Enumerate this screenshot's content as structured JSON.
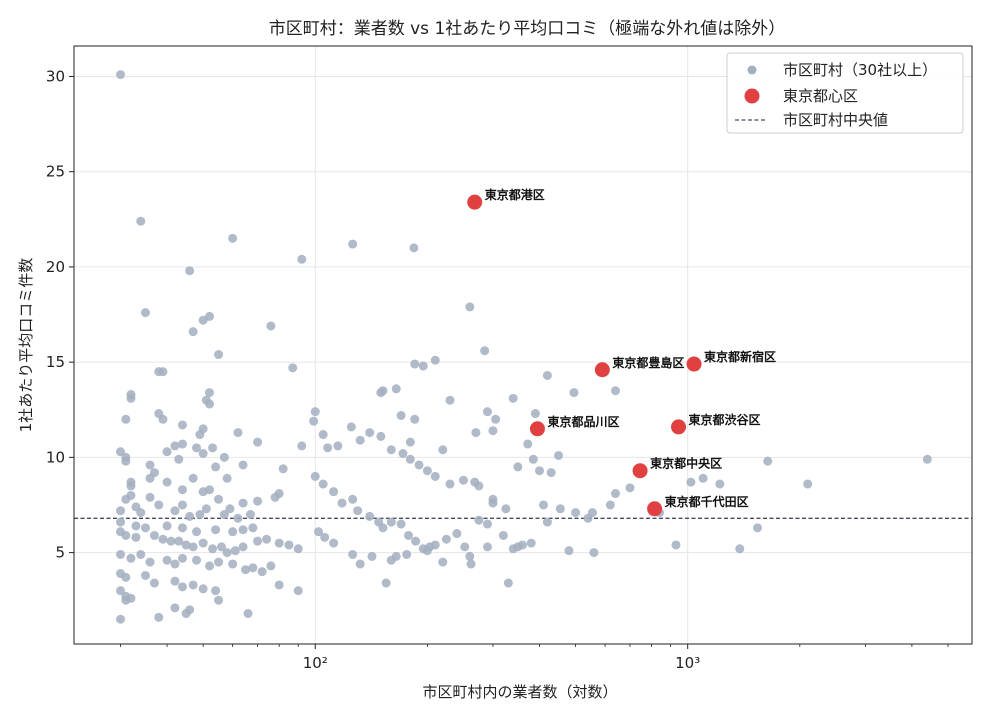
{
  "chart_data": {
    "type": "scatter",
    "title": "市区町村：業者数 vs 1社あたり平均口コミ（極端な外れ値は除外）",
    "xlabel": "市区町村内の業者数（対数）",
    "ylabel": "1社あたり平均口コミ件数",
    "x_scale": "log",
    "xlim": [
      22.5,
      5800
    ],
    "ylim": [
      0.2,
      31.6
    ],
    "x_ticks": [
      100,
      1000
    ],
    "x_tick_labels": [
      "10²",
      "10³"
    ],
    "y_ticks": [
      5,
      10,
      15,
      20,
      25,
      30
    ],
    "grid": true,
    "legend_position": "top-right",
    "legend": [
      "市区町村（30社以上）",
      "東京都心区",
      "市区町村中央値"
    ],
    "colors": {
      "municipal": "#a3aebf",
      "highlight": "#e04040",
      "median": "#444b5c"
    },
    "median_y": 6.8,
    "series": [
      {
        "name": "市区町村（30社以上）",
        "points": [
          [
            30,
            30.1
          ],
          [
            34,
            22.4
          ],
          [
            60,
            21.5
          ],
          [
            46,
            19.8
          ],
          [
            92,
            20.4
          ],
          [
            126,
            21.2
          ],
          [
            184,
            21.0
          ],
          [
            35,
            17.6
          ],
          [
            52,
            17.4
          ],
          [
            50,
            17.2
          ],
          [
            76,
            16.9
          ],
          [
            47,
            16.6
          ],
          [
            55,
            15.4
          ],
          [
            87,
            14.7
          ],
          [
            38,
            14.5
          ],
          [
            39,
            14.5
          ],
          [
            32,
            13.3
          ],
          [
            32,
            13.1
          ],
          [
            52,
            13.4
          ],
          [
            51,
            13.0
          ],
          [
            52,
            12.8
          ],
          [
            38,
            12.3
          ],
          [
            39,
            12.0
          ],
          [
            31,
            12.0
          ],
          [
            44,
            11.7
          ],
          [
            50,
            11.5
          ],
          [
            62,
            11.3
          ],
          [
            49,
            11.2
          ],
          [
            70,
            10.8
          ],
          [
            42,
            10.6
          ],
          [
            44,
            10.7
          ],
          [
            48,
            10.5
          ],
          [
            53,
            10.5
          ],
          [
            92,
            10.6
          ],
          [
            40,
            10.3
          ],
          [
            50,
            10.2
          ],
          [
            57,
            10.0
          ],
          [
            30,
            10.3
          ],
          [
            31,
            10.0
          ],
          [
            31,
            9.8
          ],
          [
            43,
            9.9
          ],
          [
            36,
            9.6
          ],
          [
            37,
            9.2
          ],
          [
            54,
            9.5
          ],
          [
            64,
            9.6
          ],
          [
            82,
            9.4
          ],
          [
            36,
            8.9
          ],
          [
            58,
            8.9
          ],
          [
            47,
            8.9
          ],
          [
            40,
            8.7
          ],
          [
            32,
            8.7
          ],
          [
            32,
            8.5
          ],
          [
            52,
            8.3
          ],
          [
            80,
            8.1
          ],
          [
            44,
            8.3
          ],
          [
            50,
            8.2
          ],
          [
            32,
            8.0
          ],
          [
            31,
            7.8
          ],
          [
            36,
            7.9
          ],
          [
            55,
            7.8
          ],
          [
            64,
            7.6
          ],
          [
            44,
            7.5
          ],
          [
            38,
            7.5
          ],
          [
            33,
            7.4
          ],
          [
            78,
            7.9
          ],
          [
            70,
            7.7
          ],
          [
            59,
            7.3
          ],
          [
            34,
            7.1
          ],
          [
            42,
            7.2
          ],
          [
            51,
            7.3
          ],
          [
            57,
            7.0
          ],
          [
            30,
            7.2
          ],
          [
            46,
            6.9
          ],
          [
            49,
            7.0
          ],
          [
            67,
            7.0
          ],
          [
            62,
            6.8
          ],
          [
            30,
            6.6
          ],
          [
            33,
            6.4
          ],
          [
            40,
            6.4
          ],
          [
            35,
            6.3
          ],
          [
            44,
            6.3
          ],
          [
            48,
            6.1
          ],
          [
            54,
            6.2
          ],
          [
            60,
            6.1
          ],
          [
            64,
            6.2
          ],
          [
            68,
            6.3
          ],
          [
            30,
            6.1
          ],
          [
            31,
            5.9
          ],
          [
            33,
            5.8
          ],
          [
            37,
            5.9
          ],
          [
            39,
            5.7
          ],
          [
            41,
            5.6
          ],
          [
            43,
            5.6
          ],
          [
            45,
            5.4
          ],
          [
            47,
            5.3
          ],
          [
            50,
            5.5
          ],
          [
            53,
            5.2
          ],
          [
            56,
            5.3
          ],
          [
            58,
            5.0
          ],
          [
            61,
            5.1
          ],
          [
            64,
            5.3
          ],
          [
            70,
            5.6
          ],
          [
            74,
            5.7
          ],
          [
            80,
            5.5
          ],
          [
            85,
            5.4
          ],
          [
            90,
            5.2
          ],
          [
            30,
            4.9
          ],
          [
            32,
            4.7
          ],
          [
            34,
            4.9
          ],
          [
            36,
            4.5
          ],
          [
            40,
            4.6
          ],
          [
            42,
            4.4
          ],
          [
            44,
            4.7
          ],
          [
            48,
            4.6
          ],
          [
            52,
            4.3
          ],
          [
            55,
            4.5
          ],
          [
            60,
            4.4
          ],
          [
            65,
            4.1
          ],
          [
            68,
            4.2
          ],
          [
            72,
            4.0
          ],
          [
            76,
            4.3
          ],
          [
            30,
            3.9
          ],
          [
            31,
            3.7
          ],
          [
            35,
            3.8
          ],
          [
            37,
            3.4
          ],
          [
            42,
            3.5
          ],
          [
            44,
            3.2
          ],
          [
            47,
            3.3
          ],
          [
            50,
            3.1
          ],
          [
            54,
            3.0
          ],
          [
            30,
            3.0
          ],
          [
            31,
            2.7
          ],
          [
            32,
            2.6
          ],
          [
            31,
            2.5
          ],
          [
            42,
            2.1
          ],
          [
            46,
            2.0
          ],
          [
            45,
            1.8
          ],
          [
            38,
            1.6
          ],
          [
            30,
            1.5
          ],
          [
            55,
            2.5
          ],
          [
            66,
            1.8
          ],
          [
            80,
            3.3
          ],
          [
            90,
            3.0
          ],
          [
            100,
            12.4
          ],
          [
            99,
            11.9
          ],
          [
            105,
            11.2
          ],
          [
            108,
            10.5
          ],
          [
            115,
            10.6
          ],
          [
            125,
            11.6
          ],
          [
            132,
            10.9
          ],
          [
            140,
            11.3
          ],
          [
            150,
            11.1
          ],
          [
            160,
            10.4
          ],
          [
            172,
            10.2
          ],
          [
            180,
            9.9
          ],
          [
            190,
            9.6
          ],
          [
            200,
            9.3
          ],
          [
            210,
            9.0
          ],
          [
            230,
            8.6
          ],
          [
            250,
            8.8
          ],
          [
            268,
            8.7
          ],
          [
            275,
            8.5
          ],
          [
            300,
            7.6
          ],
          [
            325,
            7.3
          ],
          [
            350,
            9.5
          ],
          [
            372,
            10.7
          ],
          [
            385,
            9.9
          ],
          [
            430,
            9.2
          ],
          [
            450,
            10.1
          ],
          [
            495,
            13.4
          ],
          [
            100,
            9.0
          ],
          [
            105,
            8.6
          ],
          [
            112,
            8.2
          ],
          [
            118,
            7.6
          ],
          [
            126,
            7.8
          ],
          [
            130,
            7.2
          ],
          [
            140,
            6.9
          ],
          [
            148,
            6.6
          ],
          [
            152,
            6.3
          ],
          [
            160,
            6.6
          ],
          [
            170,
            6.5
          ],
          [
            178,
            5.9
          ],
          [
            186,
            5.6
          ],
          [
            195,
            5.2
          ],
          [
            203,
            5.3
          ],
          [
            210,
            5.4
          ],
          [
            225,
            5.7
          ],
          [
            240,
            6.0
          ],
          [
            252,
            5.3
          ],
          [
            260,
            4.8
          ],
          [
            275,
            6.7
          ],
          [
            290,
            6.5
          ],
          [
            300,
            7.8
          ],
          [
            320,
            5.9
          ],
          [
            340,
            5.2
          ],
          [
            350,
            5.3
          ],
          [
            380,
            5.5
          ],
          [
            420,
            6.6
          ],
          [
            455,
            7.3
          ],
          [
            500,
            7.1
          ],
          [
            540,
            6.8
          ],
          [
            555,
            7.1
          ],
          [
            102,
            6.1
          ],
          [
            106,
            5.8
          ],
          [
            112,
            5.5
          ],
          [
            126,
            4.9
          ],
          [
            132,
            4.4
          ],
          [
            142,
            4.8
          ],
          [
            155,
            3.4
          ],
          [
            160,
            4.6
          ],
          [
            165,
            4.8
          ],
          [
            176,
            4.9
          ],
          [
            200,
            5.1
          ],
          [
            220,
            4.5
          ],
          [
            262,
            4.4
          ],
          [
            290,
            5.3
          ],
          [
            330,
            3.4
          ],
          [
            360,
            5.4
          ],
          [
            480,
            5.1
          ],
          [
            152,
            13.5
          ],
          [
            165,
            13.6
          ],
          [
            185,
            14.9
          ],
          [
            195,
            14.8
          ],
          [
            210,
            15.1
          ],
          [
            260,
            17.9
          ],
          [
            285,
            15.6
          ],
          [
            290,
            12.4
          ],
          [
            305,
            12.0
          ],
          [
            340,
            13.1
          ],
          [
            400,
            9.3
          ],
          [
            420,
            14.3
          ],
          [
            150,
            13.4
          ],
          [
            170,
            12.2
          ],
          [
            185,
            12.0
          ],
          [
            230,
            13.0
          ],
          [
            270,
            11.3
          ],
          [
            300,
            11.4
          ],
          [
            220,
            10.4
          ],
          [
            180,
            10.8
          ],
          [
            410,
            7.5
          ],
          [
            640,
            13.5
          ],
          [
            620,
            7.5
          ],
          [
            640,
            8.1
          ],
          [
            700,
            8.4
          ],
          [
            840,
            7.1
          ],
          [
            930,
            5.4
          ],
          [
            1020,
            8.7
          ],
          [
            1100,
            8.9
          ],
          [
            1220,
            8.6
          ],
          [
            1380,
            5.2
          ],
          [
            1540,
            6.3
          ],
          [
            1640,
            9.8
          ],
          [
            2100,
            8.6
          ],
          [
            4400,
            9.9
          ],
          [
            560,
            5.0
          ],
          [
            390,
            12.3
          ]
        ]
      },
      {
        "name": "東京都心区",
        "points": [
          {
            "x": 268,
            "y": 23.4,
            "label": "東京都港区"
          },
          {
            "x": 590,
            "y": 14.6,
            "label": "東京都豊島区"
          },
          {
            "x": 1040,
            "y": 14.9,
            "label": "東京都新宿区"
          },
          {
            "x": 395,
            "y": 11.5,
            "label": "東京都品川区"
          },
          {
            "x": 945,
            "y": 11.6,
            "label": "東京都渋谷区"
          },
          {
            "x": 745,
            "y": 9.3,
            "label": "東京都中央区"
          },
          {
            "x": 815,
            "y": 7.3,
            "label": "東京都千代田区"
          }
        ]
      }
    ]
  }
}
